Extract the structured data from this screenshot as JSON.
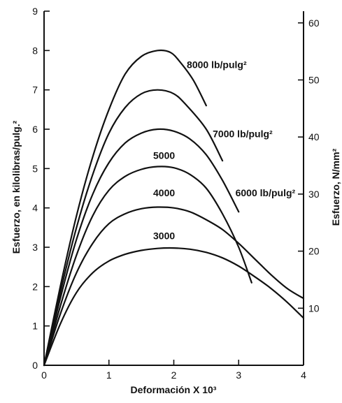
{
  "chart_data": {
    "type": "line",
    "xlabel": "Deformación X 10³",
    "ylabel": "Esfuerzo, en kilolibras/pulg.²",
    "y2label": "Esfuerzo, N/mm²",
    "xlim": [
      0,
      4
    ],
    "ylim": [
      0,
      9
    ],
    "y2lim": [
      0,
      62.05
    ],
    "xticks": [
      "0",
      "1",
      "2",
      "3",
      "4"
    ],
    "yticks": [
      "0",
      "1",
      "2",
      "3",
      "4",
      "5",
      "6",
      "7",
      "8",
      "9"
    ],
    "y2ticks": [
      "10",
      "20",
      "30",
      "40",
      "50",
      "60"
    ],
    "grid": false,
    "series": [
      {
        "name": "8000 lb/pulg²",
        "label": "8000 lb/pulg²",
        "x": [
          0,
          0.25,
          0.5,
          0.75,
          1.0,
          1.25,
          1.5,
          1.75,
          1.95,
          2.1,
          2.3,
          2.5
        ],
        "y": [
          0,
          2.0,
          3.8,
          5.3,
          6.5,
          7.4,
          7.85,
          8.0,
          7.95,
          7.7,
          7.25,
          6.6
        ]
      },
      {
        "name": "7000 lb/pulg²",
        "label": "7000 lb/pulg²",
        "x": [
          0,
          0.25,
          0.5,
          0.75,
          1.0,
          1.25,
          1.5,
          1.75,
          2.0,
          2.2,
          2.5,
          2.75
        ],
        "y": [
          0,
          1.85,
          3.5,
          4.85,
          5.9,
          6.55,
          6.9,
          7.0,
          6.9,
          6.6,
          6.0,
          5.2
        ]
      },
      {
        "name": "6000 lb/pulg²",
        "label": "6000 lb/pulg²",
        "x": [
          0,
          0.25,
          0.5,
          0.75,
          1.0,
          1.25,
          1.5,
          1.75,
          2.0,
          2.25,
          2.5,
          2.75,
          3.0
        ],
        "y": [
          0,
          1.7,
          3.2,
          4.35,
          5.15,
          5.65,
          5.9,
          6.0,
          5.95,
          5.75,
          5.35,
          4.7,
          3.9
        ]
      },
      {
        "name": "5000",
        "label": "5000",
        "x": [
          0,
          0.25,
          0.5,
          0.75,
          1.0,
          1.25,
          1.5,
          1.75,
          2.0,
          2.25,
          2.5,
          2.75,
          3.0,
          3.2
        ],
        "y": [
          0,
          1.5,
          2.8,
          3.8,
          4.45,
          4.8,
          4.98,
          5.05,
          5.02,
          4.85,
          4.5,
          3.85,
          3.0,
          2.1
        ]
      },
      {
        "name": "4000",
        "label": "4000",
        "x": [
          0,
          0.25,
          0.5,
          0.75,
          1.0,
          1.25,
          1.5,
          1.75,
          2.0,
          2.25,
          2.5,
          2.75,
          3.0,
          3.25,
          3.5,
          3.75,
          4.0
        ],
        "y": [
          0,
          1.3,
          2.35,
          3.1,
          3.6,
          3.85,
          3.98,
          4.02,
          4.0,
          3.9,
          3.7,
          3.45,
          3.1,
          2.7,
          2.3,
          1.95,
          1.7
        ]
      },
      {
        "name": "3000",
        "label": "3000",
        "x": [
          0,
          0.25,
          0.5,
          0.75,
          1.0,
          1.25,
          1.5,
          1.75,
          2.0,
          2.25,
          2.5,
          2.75,
          3.0,
          3.25,
          3.5,
          3.75,
          4.0
        ],
        "y": [
          0,
          1.05,
          1.85,
          2.35,
          2.65,
          2.82,
          2.92,
          2.97,
          2.98,
          2.95,
          2.87,
          2.73,
          2.52,
          2.25,
          1.95,
          1.6,
          1.2
        ]
      }
    ]
  }
}
